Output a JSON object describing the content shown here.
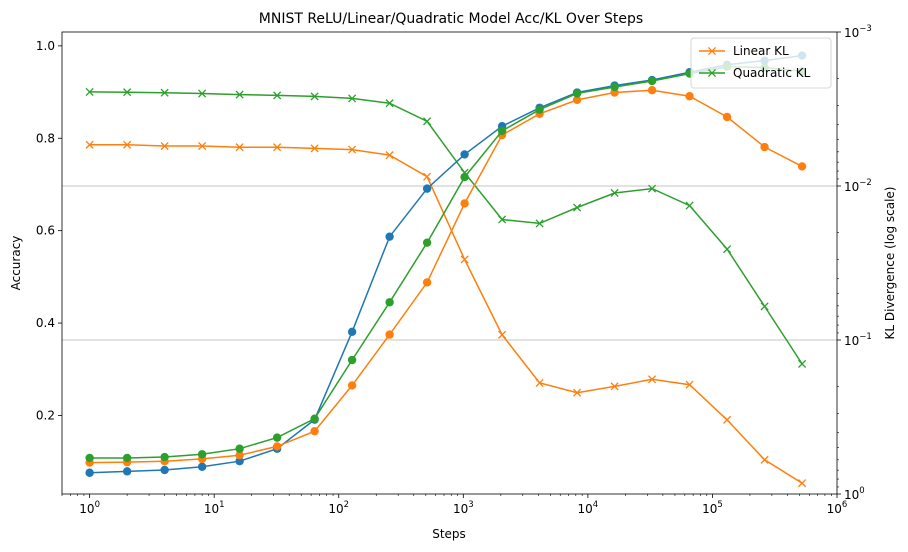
{
  "chart_data": {
    "type": "line",
    "title": "MNIST ReLU/Linear/Quadratic Model Acc/KL Over Steps",
    "xlabel": "Steps",
    "ylabel": "Accuracy",
    "y2label": "KL Divergence (log scale)",
    "x_scale": "log",
    "y2_scale": "log",
    "y2_inverted": true,
    "xlim": [
      0.6,
      1000000
    ],
    "ylim": [
      0.03,
      1.03
    ],
    "y2lim": [
      0.001,
      1
    ],
    "x_ticks": [
      {
        "v": 1,
        "b": "10",
        "e": "0"
      },
      {
        "v": 10,
        "b": "10",
        "e": "1"
      },
      {
        "v": 100,
        "b": "10",
        "e": "2"
      },
      {
        "v": 1000,
        "b": "10",
        "e": "3"
      },
      {
        "v": 10000,
        "b": "10",
        "e": "4"
      },
      {
        "v": 100000,
        "b": "10",
        "e": "5"
      },
      {
        "v": 1000000,
        "b": "10",
        "e": "6"
      }
    ],
    "y_ticks": [
      {
        "v": 0.2,
        "label": "0.2"
      },
      {
        "v": 0.4,
        "label": "0.4"
      },
      {
        "v": 0.6,
        "label": "0.6"
      },
      {
        "v": 0.8,
        "label": "0.8"
      },
      {
        "v": 1.0,
        "label": "1.0"
      }
    ],
    "y2_ticks": [
      {
        "v": 0.001,
        "b": "10",
        "e": "−3"
      },
      {
        "v": 0.01,
        "b": "10",
        "e": "−2"
      },
      {
        "v": 0.1,
        "b": "10",
        "e": "−1"
      },
      {
        "v": 1,
        "b": "10",
        "e": "0"
      }
    ],
    "grid": "y2-major",
    "legend_position": "top-right",
    "x": [
      1,
      2,
      4,
      8,
      16,
      32,
      64,
      128,
      256,
      512,
      1024,
      2048,
      4096,
      8192,
      16384,
      32768,
      65536,
      131072,
      262144,
      524288
    ],
    "accuracy_series": [
      {
        "color": "#1f77b4",
        "marker": "circle",
        "values": [
          0.076,
          0.079,
          0.082,
          0.089,
          0.101,
          0.128,
          0.191,
          0.381,
          0.587,
          0.691,
          0.765,
          0.826,
          0.866,
          0.899,
          0.914,
          0.926,
          0.943,
          0.959,
          0.968,
          0.979
        ]
      },
      {
        "color": "#ff7f0e",
        "marker": "circle",
        "values": [
          0.098,
          0.099,
          0.101,
          0.106,
          0.114,
          0.133,
          0.166,
          0.265,
          0.375,
          0.488,
          0.659,
          0.807,
          0.853,
          0.883,
          0.899,
          0.904,
          0.891,
          0.846,
          0.781,
          0.739
        ]
      },
      {
        "color": "#2ca02c",
        "marker": "circle",
        "values": [
          0.108,
          0.108,
          0.11,
          0.116,
          0.128,
          0.152,
          0.193,
          0.32,
          0.445,
          0.574,
          0.716,
          0.816,
          0.862,
          0.897,
          0.911,
          0.924,
          0.94,
          0.955,
          0.953,
          0.945
        ]
      }
    ],
    "kl_series": [
      {
        "name": "Linear KL",
        "color": "#ff7f0e",
        "marker": "x",
        "values": [
          0.0054,
          0.0054,
          0.0055,
          0.0055,
          0.0056,
          0.0056,
          0.0057,
          0.0058,
          0.0063,
          0.0087,
          0.03,
          0.0925,
          0.19,
          0.22,
          0.2,
          0.18,
          0.195,
          0.33,
          0.6,
          0.85
        ]
      },
      {
        "name": "Quadratic KL",
        "color": "#2ca02c",
        "marker": "x",
        "values": [
          0.00245,
          0.00246,
          0.00248,
          0.00251,
          0.00255,
          0.00258,
          0.00262,
          0.0027,
          0.0029,
          0.0038,
          0.0082,
          0.0165,
          0.0175,
          0.0138,
          0.0111,
          0.0104,
          0.0134,
          0.0257,
          0.0605,
          0.143
        ]
      }
    ]
  }
}
